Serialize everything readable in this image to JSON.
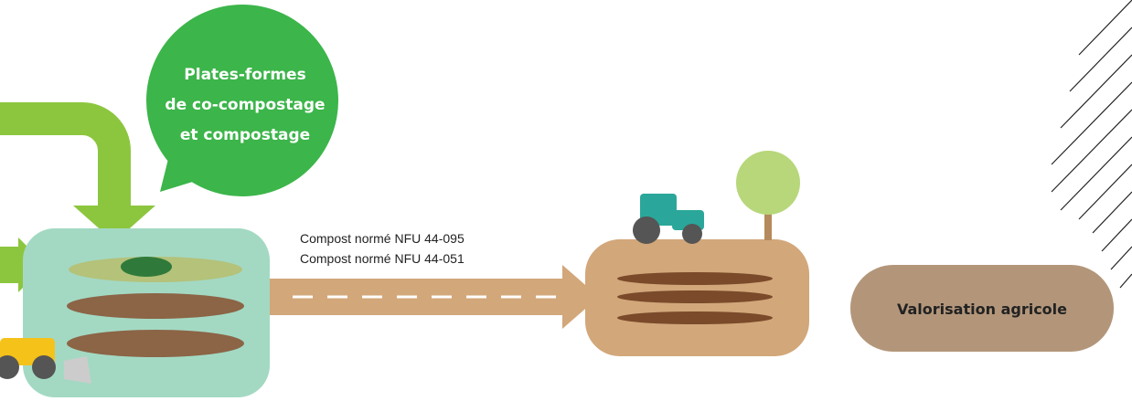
{
  "bubble": {
    "lines": [
      "Plates-formes",
      "de co-compostage",
      "et compostage"
    ]
  },
  "compost_labels": [
    "Compost normé NFU 44-095",
    "Compost normé NFU 44-051"
  ],
  "valorisation": "Valorisation agricole"
}
